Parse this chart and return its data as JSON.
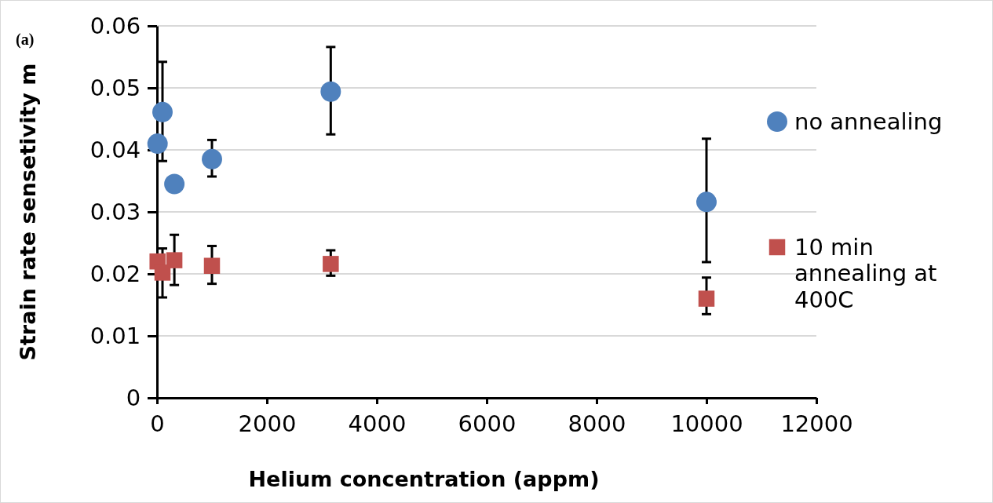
{
  "chart_data": {
    "type": "scatter",
    "xlabel": "Helium concentration (appm)",
    "ylabel": "Strain rate sensetivity m",
    "annotations": [
      "(a)"
    ],
    "xlim": [
      0,
      12000
    ],
    "xticks": [
      0,
      2000,
      4000,
      6000,
      8000,
      10000,
      12000
    ],
    "ylim": [
      0,
      0.06
    ],
    "yticks": [
      {
        "value": 0,
        "label": "0"
      },
      0.01,
      0.02,
      0.03,
      0.04,
      0.05,
      0.06
    ],
    "grid": "y",
    "legend": "right",
    "series": [
      {
        "name": "no annealing",
        "color": "#4f81bd",
        "marker": "circle",
        "x": [
          10,
          100,
          316,
          1000,
          3162,
          10000
        ],
        "values": [
          0.041,
          0.0461,
          0.0345,
          0.0385,
          0.0494,
          0.0316
        ],
        "errors": [
          null,
          [
            0.0382,
            0.0542
          ],
          null,
          [
            0.0357,
            0.0416
          ],
          [
            0.0425,
            0.0566
          ],
          [
            0.0219,
            0.0418
          ]
        ]
      },
      {
        "name": "10 min annealing at 400C",
        "color": "#c0504d",
        "marker": "square",
        "x": [
          10,
          100,
          316,
          1000,
          3162,
          10000
        ],
        "values": [
          0.022,
          0.0202,
          0.0222,
          0.0213,
          0.0216,
          0.016
        ],
        "errors": [
          null,
          [
            0.0162,
            0.0241
          ],
          [
            0.0182,
            0.0263
          ],
          [
            0.0184,
            0.0245
          ],
          [
            0.0197,
            0.0238
          ],
          [
            0.0135,
            0.0194
          ]
        ]
      }
    ]
  }
}
